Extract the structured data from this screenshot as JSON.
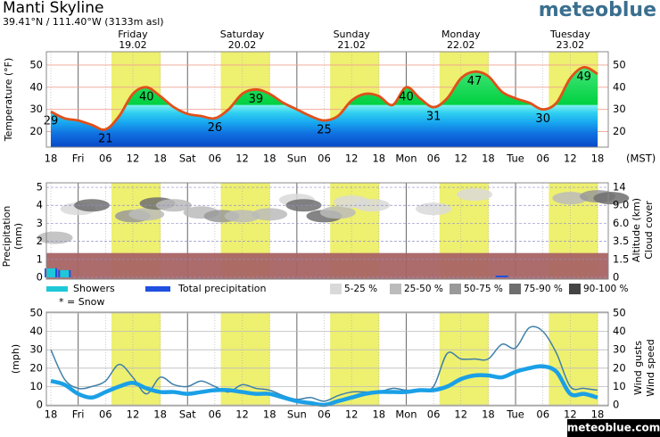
{
  "header": {
    "title": "Manti Skyline",
    "coords": "39.41°N / 111.40°W (3133m asl)",
    "logo": "meteoblue",
    "footer": "meteoblue.com"
  },
  "chart_data": [
    {
      "type": "line",
      "y_label": "Temperature (°F)",
      "timezone": "(MST)",
      "categories": [
        "18",
        null,
        "Fri",
        null,
        "06",
        null,
        "12",
        null,
        "18",
        null,
        "Sat",
        null,
        "06",
        null,
        "12",
        null,
        "18",
        null,
        "Sun",
        null,
        "06",
        null,
        "12",
        null,
        "18",
        null,
        "Mon",
        null,
        "06",
        null,
        "12",
        null,
        "18",
        null,
        "Tue",
        null,
        "06",
        null,
        "12",
        null,
        "18"
      ],
      "days": [
        {
          "name": "Friday",
          "date": "19.02",
          "color": "#000000"
        },
        {
          "name": "Saturday",
          "date": "20.02",
          "color": "#e0501a"
        },
        {
          "name": "Sunday",
          "date": "21.02",
          "color": "#e0501a"
        },
        {
          "name": "Monday",
          "date": "22.02",
          "color": "#000000"
        },
        {
          "name": "Tuesday",
          "date": "23.02",
          "color": "#000000"
        }
      ],
      "series": [
        {
          "name": "Temperature",
          "color": "#e0501a",
          "values": [
            29,
            26,
            25,
            23,
            21,
            27,
            37,
            40,
            36,
            31,
            28,
            27,
            26,
            30,
            37,
            39,
            37,
            33,
            30,
            27,
            25,
            27,
            34,
            37,
            36,
            32,
            40,
            35,
            31,
            35,
            44,
            47,
            45,
            38,
            35,
            33,
            30,
            33,
            44,
            49,
            46
          ]
        }
      ],
      "labels": [
        {
          "at": 0,
          "value": 29
        },
        {
          "at": 4,
          "value": 21
        },
        {
          "at": 7,
          "value": 40
        },
        {
          "at": 12,
          "value": 26
        },
        {
          "at": 15,
          "value": 39
        },
        {
          "at": 20,
          "value": 25
        },
        {
          "at": 26,
          "value": 40
        },
        {
          "at": 28,
          "value": 31
        },
        {
          "at": 31,
          "value": 47
        },
        {
          "at": 36,
          "value": 30
        },
        {
          "at": 39,
          "value": 49
        }
      ],
      "ylim": [
        13,
        56
      ],
      "yticks": [
        20,
        30,
        40,
        50
      ],
      "grid": true
    },
    {
      "type": "precipitation",
      "y_label": "Precipitation",
      "y_unit": "(mm)",
      "y2_label": "Altitude (km)",
      "y3_label": "Cloud cover",
      "series": [
        {
          "name": "Showers",
          "color": "#1ec8d8",
          "values": [
            0.5,
            0.4,
            0,
            0,
            0,
            0,
            0,
            0,
            0,
            0,
            0,
            0,
            0,
            0,
            0,
            0,
            0,
            0,
            0,
            0,
            0,
            0,
            0,
            0,
            0,
            0,
            0,
            0,
            0,
            0,
            0,
            0,
            0,
            0,
            0,
            0,
            0,
            0,
            0,
            0,
            0
          ]
        },
        {
          "name": "Total precipitation",
          "color": "#2050e0",
          "values": [
            0.5,
            0.4,
            0,
            0,
            0,
            0,
            0,
            0,
            0,
            0,
            0,
            0,
            0,
            0,
            0,
            0,
            0,
            0,
            0,
            0,
            0,
            0,
            0,
            0,
            0,
            0,
            0,
            0,
            0,
            0,
            0,
            0,
            0,
            0.1,
            0,
            0,
            0,
            0,
            0,
            0,
            0
          ]
        }
      ],
      "snow_note": "* = Snow",
      "ground": 1.35,
      "ground_color": "#a86464",
      "cloud_legend": [
        {
          "label": "5-25 %",
          "color": "#d9d9d9"
        },
        {
          "label": "25-50 %",
          "color": "#bbbbbb"
        },
        {
          "label": "50-75 %",
          "color": "#999999"
        },
        {
          "label": "75-90 %",
          "color": "#6e6e6e"
        },
        {
          "label": "90-100 %",
          "color": "#444444"
        }
      ],
      "clouds": [
        {
          "at": 0.3,
          "alt": 2.2,
          "cover": 1
        },
        {
          "at": 2,
          "alt": 3.8,
          "cover": 0
        },
        {
          "at": 3,
          "alt": 4.0,
          "cover": 3
        },
        {
          "at": 6,
          "alt": 3.4,
          "cover": 2
        },
        {
          "at": 7,
          "alt": 3.5,
          "cover": 1
        },
        {
          "at": 7.8,
          "alt": 4.1,
          "cover": 3
        },
        {
          "at": 9,
          "alt": 4.0,
          "cover": 1
        },
        {
          "at": 11,
          "alt": 3.6,
          "cover": 1
        },
        {
          "at": 12.5,
          "alt": 3.4,
          "cover": 2
        },
        {
          "at": 14,
          "alt": 3.4,
          "cover": 1
        },
        {
          "at": 16,
          "alt": 3.5,
          "cover": 1
        },
        {
          "at": 18,
          "alt": 4.3,
          "cover": 0
        },
        {
          "at": 18.5,
          "alt": 4.0,
          "cover": 3
        },
        {
          "at": 20,
          "alt": 3.4,
          "cover": 3
        },
        {
          "at": 21,
          "alt": 3.6,
          "cover": 1
        },
        {
          "at": 22,
          "alt": 4.2,
          "cover": 0
        },
        {
          "at": 23.5,
          "alt": 4.0,
          "cover": 0
        },
        {
          "at": 28,
          "alt": 3.8,
          "cover": 0
        },
        {
          "at": 31,
          "alt": 4.6,
          "cover": 0
        },
        {
          "at": 38,
          "alt": 4.4,
          "cover": 1
        },
        {
          "at": 40,
          "alt": 4.5,
          "cover": 2
        },
        {
          "at": 41,
          "alt": 4.4,
          "cover": 3
        }
      ],
      "ylim": [
        -0.1,
        5.25
      ],
      "yticks": [
        0,
        1,
        2,
        3,
        4,
        5
      ],
      "y2ticks": [
        0,
        {
          "value": 1.5,
          "label": "1.5"
        },
        {
          "value": 3.5,
          "label": "3.5"
        },
        {
          "value": 6,
          "label": "6.0"
        },
        {
          "value": 9,
          "label": "9.0"
        },
        14
      ],
      "grid": true
    },
    {
      "type": "line",
      "y_label": "(mph)",
      "categories": [
        "18",
        null,
        "Fri",
        null,
        "06",
        null,
        "12",
        null,
        "18",
        null,
        "Sat",
        null,
        "06",
        null,
        "12",
        null,
        "18",
        null,
        "Sun",
        null,
        "06",
        null,
        "12",
        null,
        "18",
        null,
        "Mon",
        null,
        "06",
        null,
        "12",
        null,
        "18",
        null,
        "Tue",
        null,
        "06",
        null,
        "12",
        null,
        "18"
      ],
      "series": [
        {
          "name": "Wind gusts",
          "color": "#3f7fa8",
          "values": [
            30,
            14,
            9,
            10,
            13,
            22,
            15,
            6,
            15,
            11,
            10,
            13,
            10,
            7,
            11,
            9,
            8,
            5,
            3,
            4,
            2,
            5,
            7,
            7,
            7,
            9,
            8,
            8,
            10,
            28,
            25,
            25,
            25,
            33,
            31,
            42,
            40,
            28,
            10,
            9,
            8
          ]
        },
        {
          "name": "Wind speed",
          "color": "#1aa0e6",
          "values": [
            13,
            11,
            6,
            4,
            7,
            10,
            12,
            9,
            7,
            7,
            6,
            7,
            8,
            8,
            7,
            6,
            6,
            4,
            2,
            1,
            0,
            2,
            4,
            6,
            7,
            7,
            7,
            8,
            8,
            10,
            14,
            16,
            16,
            15,
            18,
            20,
            21,
            18,
            6,
            6,
            4
          ]
        }
      ],
      "ylim": [
        -0.5,
        50.5
      ],
      "yticks": [
        0,
        10,
        20,
        30,
        40,
        50
      ],
      "grid": true
    }
  ]
}
